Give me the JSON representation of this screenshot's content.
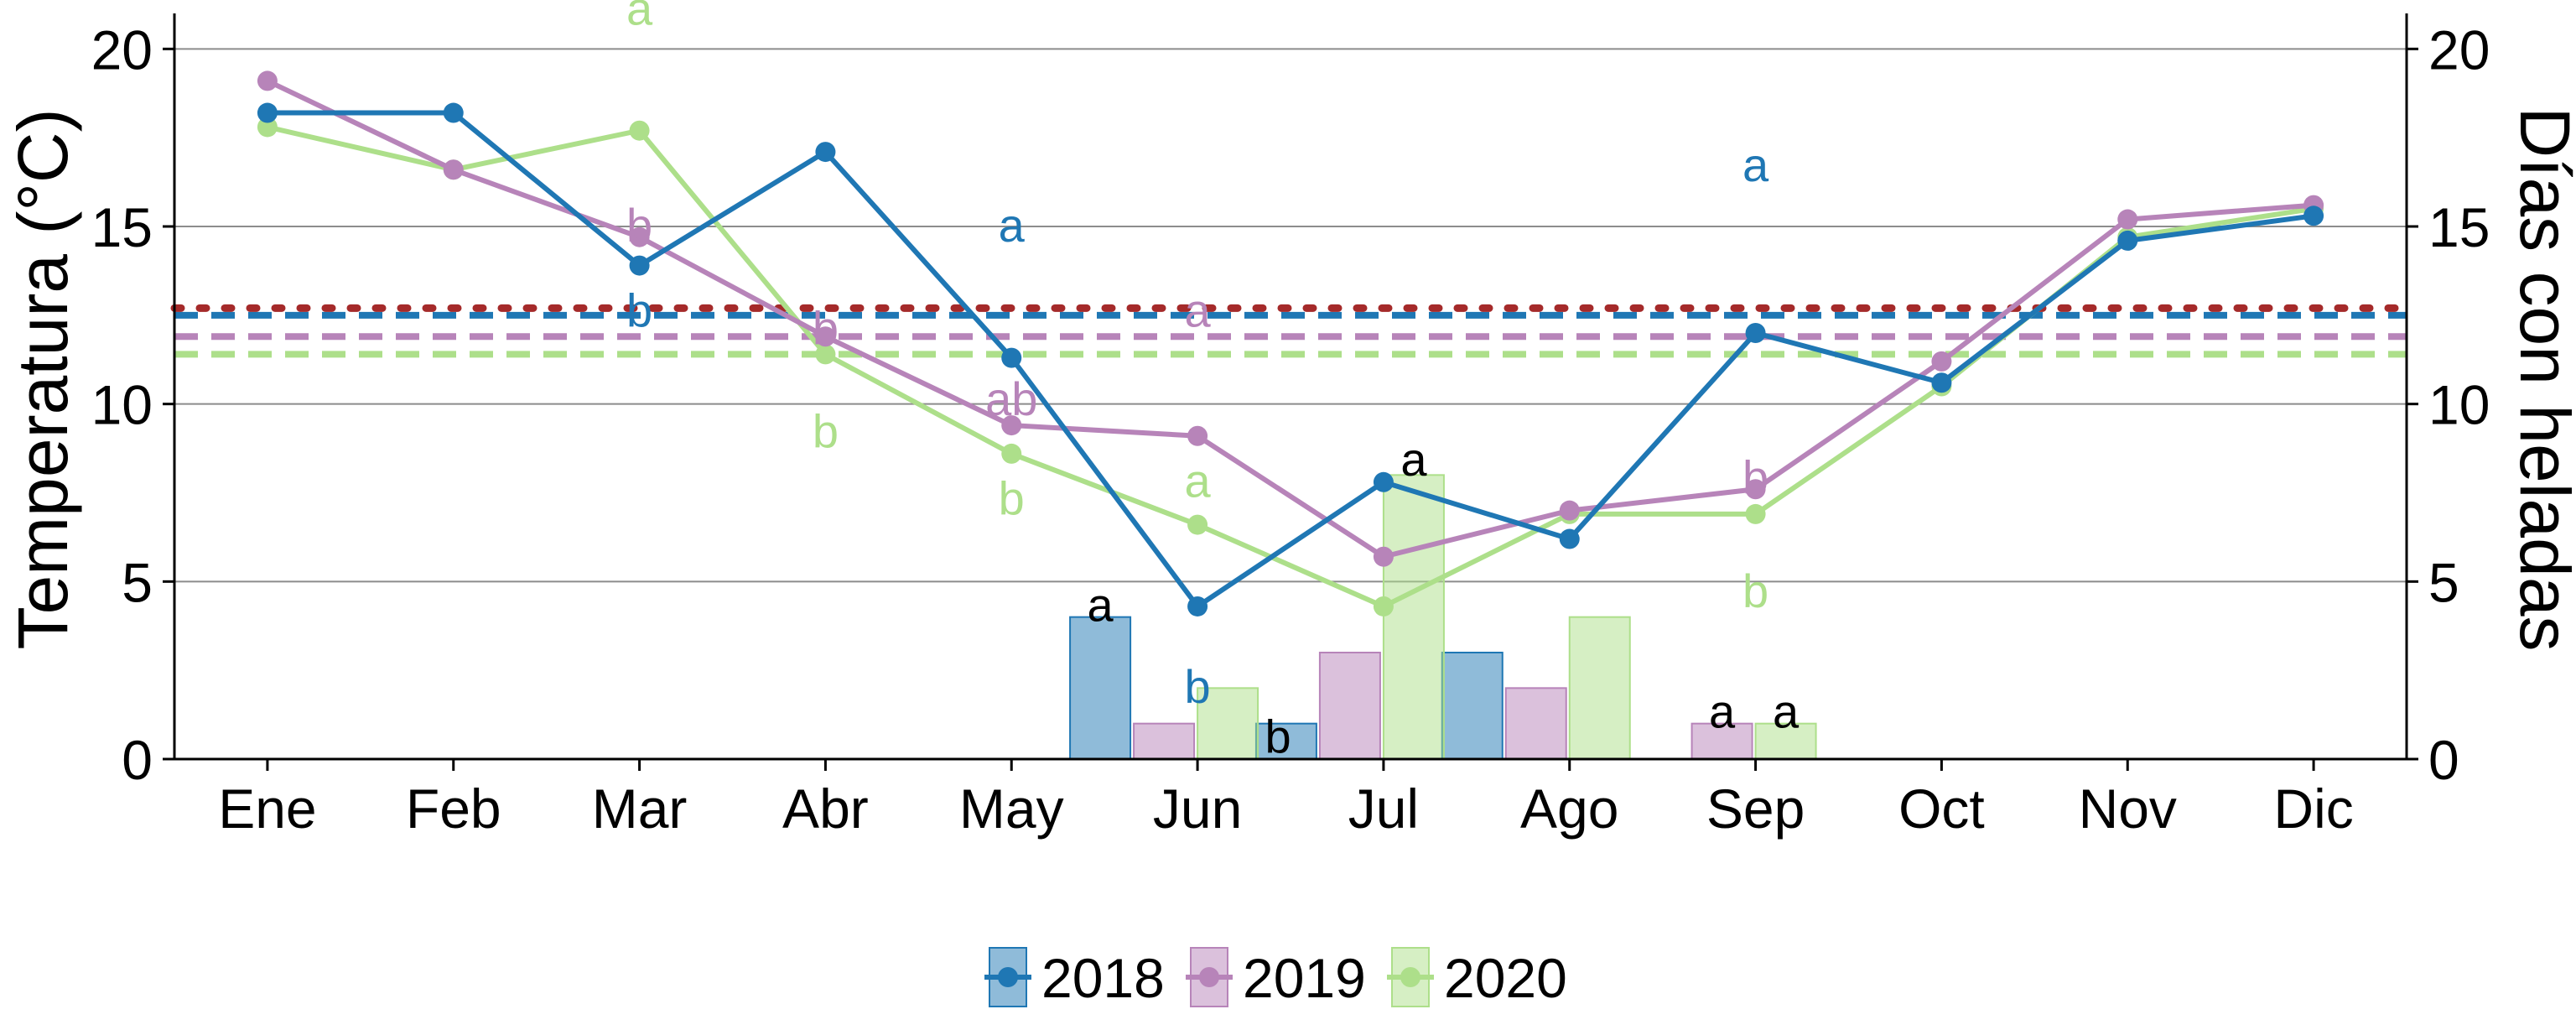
{
  "chart_data": {
    "type": "bar+line",
    "title": "",
    "xlabel": "",
    "ylabel": "Temperatura (°C)",
    "y2label": "Días con heladas",
    "ylim": [
      0,
      21
    ],
    "y2lim": [
      0,
      21
    ],
    "yticks": [
      0,
      5,
      10,
      15,
      20
    ],
    "y2ticks": [
      0,
      5,
      10,
      15,
      20
    ],
    "categories": [
      "Ene",
      "Feb",
      "Mar",
      "Abr",
      "May",
      "Jun",
      "Jul",
      "Ago",
      "Sep",
      "Oct",
      "Nov",
      "Dic"
    ],
    "grid": "horizontal",
    "legend_position": "bottom",
    "colors": {
      "2018": "#1f77b4",
      "2019": "#b784b9",
      "2020": "#addf8a",
      "dotted_reference": "#a52a2a"
    },
    "series": [
      {
        "name": "2018",
        "color": "#1f77b4",
        "temperature": [
          18.2,
          18.2,
          13.9,
          17.1,
          11.3,
          4.3,
          7.8,
          6.2,
          12.0,
          10.6,
          14.6,
          15.3
        ],
        "frost_days": [
          0,
          0,
          0,
          0,
          0,
          4,
          1,
          3,
          0,
          0,
          0,
          0
        ],
        "mean_line": 12.5
      },
      {
        "name": "2019",
        "color": "#b784b9",
        "temperature": [
          19.1,
          16.6,
          14.7,
          11.9,
          9.4,
          9.1,
          5.7,
          7.0,
          7.6,
          11.2,
          15.2,
          15.6
        ],
        "frost_days": [
          0,
          0,
          0,
          0,
          0,
          1,
          3,
          2,
          1,
          0,
          0,
          0
        ],
        "mean_line": 11.9
      },
      {
        "name": "2020",
        "color": "#addf8a",
        "temperature": [
          17.8,
          16.6,
          17.7,
          11.4,
          8.6,
          6.6,
          4.3,
          6.9,
          6.9,
          10.5,
          14.7,
          15.5
        ],
        "frost_days": [
          0,
          0,
          0,
          0,
          0,
          2,
          8,
          4,
          1,
          0,
          0,
          0
        ],
        "mean_line": 11.4
      }
    ],
    "reference_line": {
      "value": 12.7,
      "style": "dotted",
      "color": "#a52a2a"
    },
    "annotations": [
      {
        "text": "a",
        "category": "Mar",
        "value": 21.2,
        "series": "2020"
      },
      {
        "text": "b",
        "category": "Mar",
        "value": 15.1,
        "series": "2019"
      },
      {
        "text": "b",
        "category": "Mar",
        "value": 12.7,
        "series": "2018"
      },
      {
        "text": "b",
        "category": "Abr",
        "value": 12.2,
        "series": "2019"
      },
      {
        "text": "b",
        "category": "Abr",
        "value": 9.3,
        "series": "2020"
      },
      {
        "text": "a",
        "category": "May",
        "value": 15.1,
        "series": "2018"
      },
      {
        "text": "ab",
        "category": "May",
        "value": 10.2,
        "series": "2019"
      },
      {
        "text": "b",
        "category": "May",
        "value": 7.4,
        "series": "2020"
      },
      {
        "text": "a",
        "category": "Jun",
        "value": 12.7,
        "series": "2019"
      },
      {
        "text": "a",
        "category": "Jun",
        "value": 7.9,
        "series": "2020"
      },
      {
        "text": "b",
        "category": "Jun",
        "value": 2.1,
        "series": "2018"
      },
      {
        "text": "a",
        "category": "Sep",
        "value": 16.8,
        "series": "2018"
      },
      {
        "text": "b",
        "category": "Sep",
        "value": 8.0,
        "series": "2019"
      },
      {
        "text": "b",
        "category": "Sep",
        "value": 4.8,
        "series": "2020"
      },
      {
        "text": "a",
        "category": "Jun",
        "value": 4.4,
        "series": "frost-2018"
      },
      {
        "text": "b",
        "category": "Jun",
        "value": 0.7,
        "series": "frost-2020"
      },
      {
        "text": "a",
        "category": "Jul",
        "value": 8.5,
        "series": "frost-2020"
      },
      {
        "text": "a",
        "category": "Sep",
        "value": 1.4,
        "series": "frost-2019"
      },
      {
        "text": "a",
        "category": "Sep",
        "value": 1.4,
        "series": "frost-2020"
      }
    ]
  }
}
